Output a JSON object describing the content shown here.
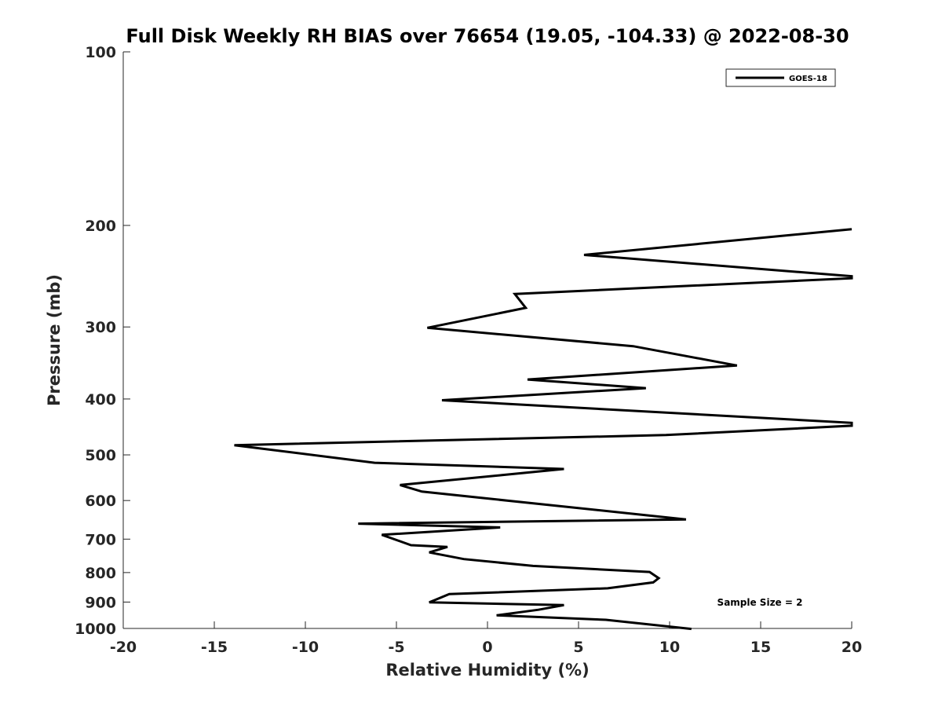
{
  "chart_data": {
    "type": "line",
    "title": "Full Disk Weekly RH BIAS over 76654 (19.05, -104.33) @ 2022-08-30",
    "xlabel": "Relative Humidity (%)",
    "ylabel": "Pressure (mb)",
    "xlim": [
      -20,
      20
    ],
    "ylim": [
      100,
      1000
    ],
    "yscale": "log",
    "y_reversed": true,
    "grid": false,
    "legend_position": "top-right",
    "xticks": [
      -20,
      -15,
      -10,
      -5,
      0,
      5,
      10,
      15,
      20
    ],
    "xtick_labels": [
      "-20",
      "-15",
      "-10",
      "-5",
      "0",
      "5",
      "10",
      "15",
      "20"
    ],
    "yticks": [
      100,
      200,
      300,
      400,
      500,
      600,
      700,
      800,
      900,
      1000
    ],
    "ytick_labels": [
      "100",
      "200",
      "300",
      "400",
      "500",
      "600",
      "700",
      "800",
      "900",
      "1000"
    ],
    "annotation": "Sample Size = 2",
    "colors": {
      "line": "#000000",
      "axis": "#262626"
    },
    "series": [
      {
        "name": "GOES-18",
        "points": [
          [
            20.0,
            203
          ],
          [
            5.3,
            225
          ],
          [
            20.0,
            245
          ],
          [
            20.0,
            247
          ],
          [
            1.5,
            263
          ],
          [
            2.1,
            278
          ],
          [
            -3.3,
            301
          ],
          [
            8.0,
            324
          ],
          [
            13.7,
            350
          ],
          [
            2.2,
            370
          ],
          [
            8.7,
            383
          ],
          [
            -2.5,
            402
          ],
          [
            20.0,
            440
          ],
          [
            20.0,
            445
          ],
          [
            9.8,
            462
          ],
          [
            -13.9,
            481
          ],
          [
            -6.2,
            516
          ],
          [
            4.2,
            529
          ],
          [
            0.8,
            542
          ],
          [
            -4.8,
            564
          ],
          [
            -3.6,
            579
          ],
          [
            10.9,
            647
          ],
          [
            -7.1,
            658
          ],
          [
            0.7,
            668
          ],
          [
            -5.8,
            688
          ],
          [
            -4.2,
            717
          ],
          [
            -2.2,
            722
          ],
          [
            -3.2,
            738
          ],
          [
            -1.3,
            758
          ],
          [
            2.5,
            779
          ],
          [
            8.9,
            798
          ],
          [
            9.4,
            818
          ],
          [
            9.1,
            832
          ],
          [
            6.6,
            852
          ],
          [
            -2.1,
            872
          ],
          [
            -3.2,
            901
          ],
          [
            4.2,
            911
          ],
          [
            2.8,
            928
          ],
          [
            0.5,
            949
          ],
          [
            6.5,
            966
          ],
          [
            11.2,
            1002
          ]
        ]
      }
    ]
  }
}
